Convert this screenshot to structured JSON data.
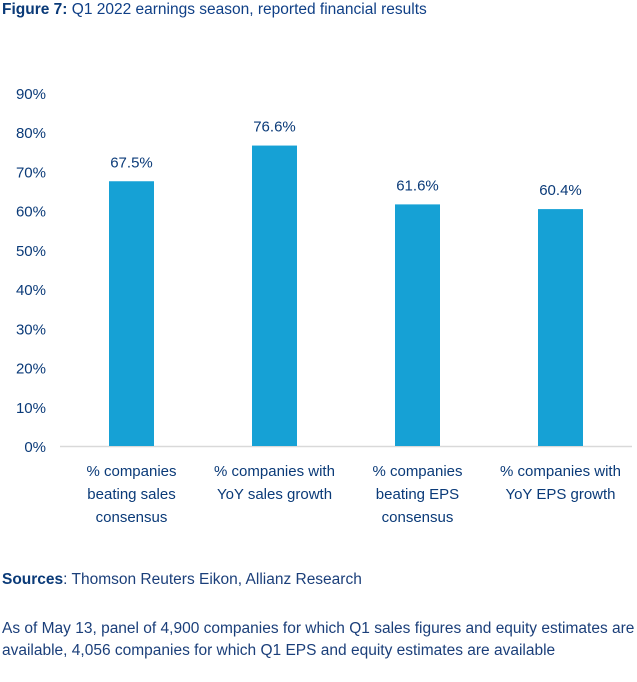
{
  "title": {
    "prefix": "Figure 7:",
    "text": " Q1 2022 earnings season, reported financial results"
  },
  "chart_data": {
    "type": "bar",
    "title": "Q1 2022 earnings season, reported financial results",
    "categories": [
      [
        "% companies",
        "beating sales",
        "consensus"
      ],
      [
        "% companies with",
        "YoY sales growth"
      ],
      [
        "% companies",
        "beating EPS",
        "consensus"
      ],
      [
        "% companies with",
        "YoY EPS growth"
      ]
    ],
    "values": [
      67.5,
      76.6,
      61.6,
      60.4
    ],
    "data_labels": [
      "67.5%",
      "76.6%",
      "61.6%",
      "60.4%"
    ],
    "xlabel": "",
    "ylabel": "",
    "ylim": [
      0,
      90
    ],
    "yticks": [
      "0%",
      "10%",
      "20%",
      "30%",
      "40%",
      "50%",
      "60%",
      "70%",
      "80%",
      "90%"
    ],
    "grid": false,
    "legend": "none",
    "bar_color": "#16a1d5",
    "axis_color": "#d9d9d9",
    "text_color": "#0a3a78"
  },
  "sources": {
    "label": "Sources",
    "text": ": Thomson Reuters Eikon, Allianz Research"
  },
  "note": "As of May 13, panel of 4,900 companies for which Q1 sales figures and equity estimates are available, 4,056 companies for which Q1 EPS and equity estimates are available"
}
